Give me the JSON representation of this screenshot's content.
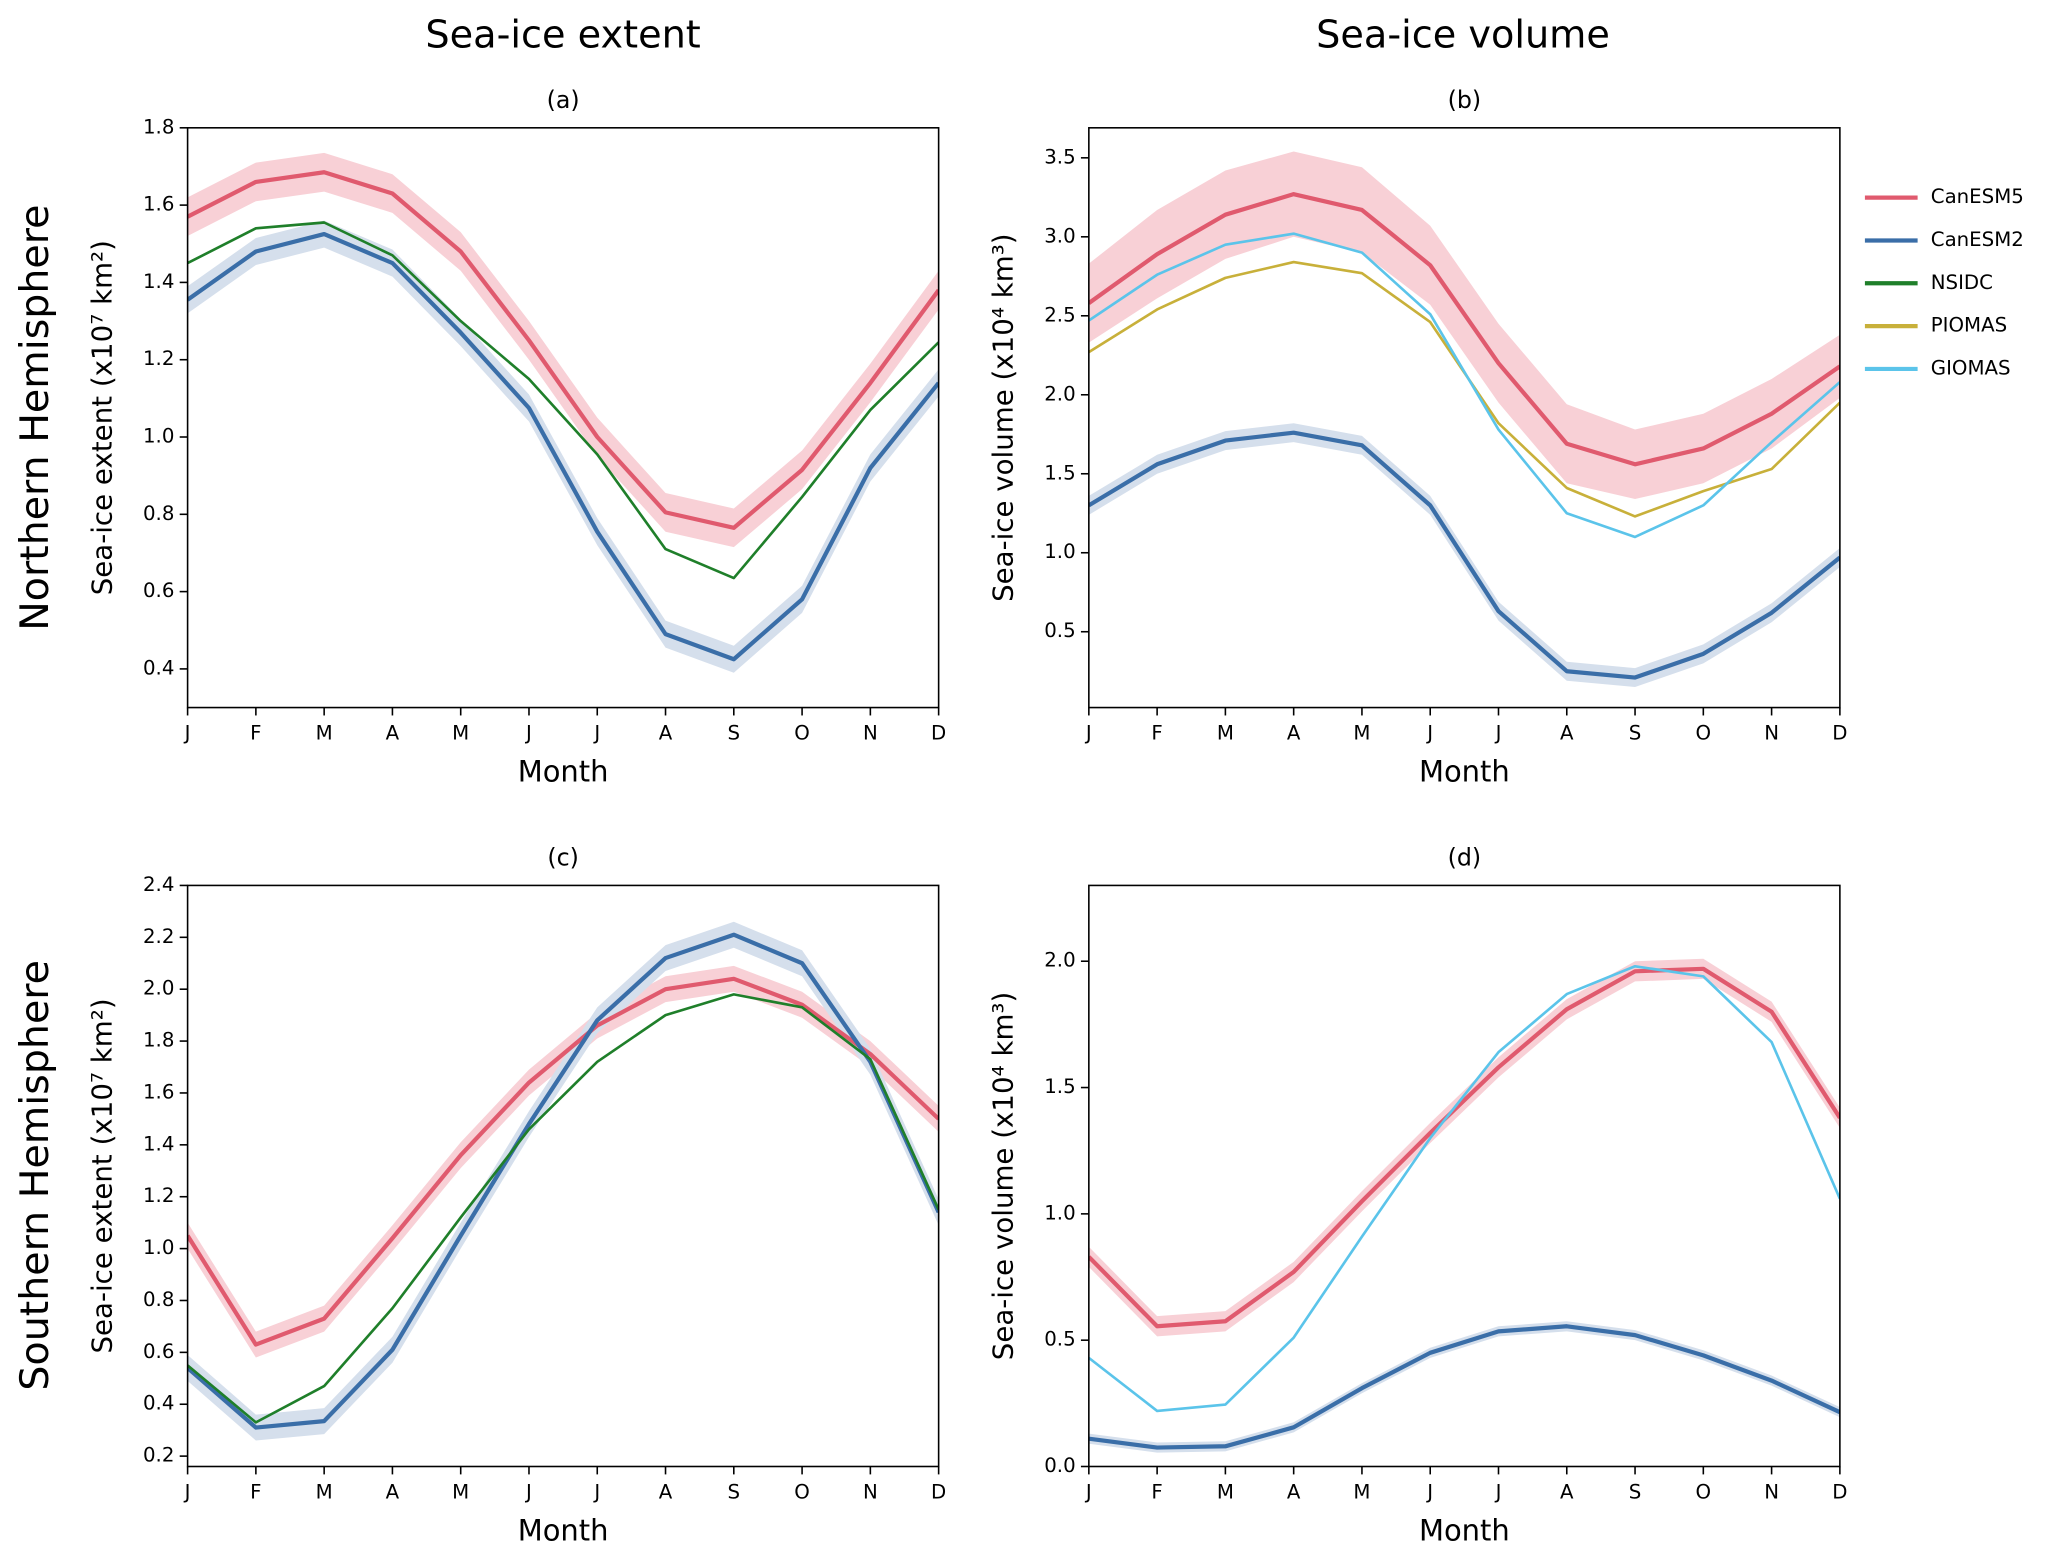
{
  "column_titles": [
    "Sea-ice extent",
    "Sea-ice volume"
  ],
  "row_titles": [
    "Northern Hemisphere",
    "Southern Hemisphere"
  ],
  "legend": [
    {
      "name": "CanESM5",
      "color": "#e05a6e"
    },
    {
      "name": "CanESM2",
      "color": "#3a6ea8"
    },
    {
      "name": "NSIDC",
      "color": "#1f7f2a"
    },
    {
      "name": "PIOMAS",
      "color": "#c8b03a"
    },
    {
      "name": "GIOMAS",
      "color": "#5bc4ea"
    }
  ],
  "chart_data": [
    {
      "type": "line",
      "title": "(a)",
      "xlabel": "Month",
      "ylabel": "Sea-ice extent (x10⁷ km²)",
      "categories": [
        "J",
        "F",
        "M",
        "A",
        "M",
        "J",
        "J",
        "A",
        "S",
        "O",
        "N",
        "D"
      ],
      "ylim": [
        0.3,
        1.8
      ],
      "yticks": [
        0.4,
        0.6,
        0.8,
        {
          "value": 1,
          "label": "1.0"
        },
        1.2,
        1.4,
        1.6,
        1.8
      ],
      "series": [
        {
          "name": "CanESM5",
          "color": "#e05a6e",
          "band_color": "#f8d0d6",
          "values": [
            1.57,
            1.66,
            1.685,
            1.63,
            1.48,
            1.25,
            1.0,
            0.805,
            0.765,
            0.915,
            1.14,
            1.38
          ],
          "error": [
            0.05,
            0.05,
            0.05,
            0.05,
            0.05,
            0.05,
            0.05,
            0.05,
            0.05,
            0.05,
            0.05,
            0.05
          ]
        },
        {
          "name": "CanESM2",
          "color": "#3a6ea8",
          "band_color": "#d5dfec",
          "values": [
            1.355,
            1.48,
            1.525,
            1.45,
            1.27,
            1.075,
            0.755,
            0.49,
            0.425,
            0.58,
            0.92,
            1.14
          ],
          "error": [
            0.035,
            0.035,
            0.035,
            0.035,
            0.035,
            0.035,
            0.035,
            0.035,
            0.035,
            0.035,
            0.035,
            0.035
          ]
        },
        {
          "name": "NSIDC",
          "color": "#1f7f2a",
          "values": [
            1.45,
            1.54,
            1.555,
            1.47,
            1.3,
            1.15,
            0.955,
            0.71,
            0.635,
            0.845,
            1.07,
            1.245
          ]
        }
      ]
    },
    {
      "type": "line",
      "title": "(b)",
      "xlabel": "Month",
      "ylabel": "Sea-ice volume (x10⁴ km³)",
      "categories": [
        "J",
        "F",
        "M",
        "A",
        "M",
        "J",
        "J",
        "A",
        "S",
        "O",
        "N",
        "D"
      ],
      "ylim": [
        0.02,
        3.69
      ],
      "yticks": [
        0.5,
        {
          "value": 1,
          "label": "1.0"
        },
        1.5,
        {
          "value": 2,
          "label": "2.0"
        },
        2.5,
        {
          "value": 3,
          "label": "3.0"
        },
        3.5
      ],
      "series": [
        {
          "name": "CanESM5",
          "color": "#e05a6e",
          "band_color": "#f8d0d6",
          "values": [
            2.58,
            2.89,
            3.14,
            3.27,
            3.17,
            2.82,
            2.2,
            1.69,
            1.56,
            1.66,
            1.88,
            2.18
          ],
          "error": [
            0.25,
            0.28,
            0.28,
            0.27,
            0.27,
            0.25,
            0.25,
            0.25,
            0.22,
            0.22,
            0.22,
            0.2
          ]
        },
        {
          "name": "CanESM2",
          "color": "#3a6ea8",
          "band_color": "#d5dfec",
          "values": [
            1.3,
            1.56,
            1.71,
            1.76,
            1.68,
            1.3,
            0.63,
            0.25,
            0.21,
            0.36,
            0.62,
            0.97
          ],
          "error": [
            0.06,
            0.06,
            0.06,
            0.06,
            0.06,
            0.06,
            0.06,
            0.06,
            0.06,
            0.06,
            0.06,
            0.06
          ]
        },
        {
          "name": "PIOMAS",
          "color": "#c8b03a",
          "values": [
            2.27,
            2.54,
            2.74,
            2.84,
            2.77,
            2.46,
            1.82,
            1.41,
            1.23,
            1.39,
            1.53,
            1.95
          ]
        },
        {
          "name": "GIOMAS",
          "color": "#5bc4ea",
          "values": [
            2.47,
            2.76,
            2.95,
            3.02,
            2.9,
            2.51,
            1.78,
            1.25,
            1.1,
            1.3,
            1.7,
            2.08
          ]
        }
      ]
    },
    {
      "type": "line",
      "title": "(c)",
      "xlabel": "Month",
      "ylabel": "Sea-ice extent (x10⁷ km²)",
      "categories": [
        "J",
        "F",
        "M",
        "A",
        "M",
        "J",
        "J",
        "A",
        "S",
        "O",
        "N",
        "D"
      ],
      "ylim": [
        0.16,
        2.4
      ],
      "yticks": [
        0.2,
        0.4,
        0.6,
        0.8,
        {
          "value": 1,
          "label": "1.0"
        },
        1.2,
        1.4,
        1.6,
        1.8,
        {
          "value": 2,
          "label": "2.0"
        },
        2.2,
        2.4
      ],
      "series": [
        {
          "name": "CanESM5",
          "color": "#e05a6e",
          "band_color": "#f8d0d6",
          "values": [
            1.05,
            0.63,
            0.73,
            1.04,
            1.36,
            1.64,
            1.86,
            2.0,
            2.04,
            1.94,
            1.75,
            1.5
          ],
          "error": [
            0.05,
            0.05,
            0.05,
            0.05,
            0.05,
            0.05,
            0.05,
            0.05,
            0.05,
            0.05,
            0.05,
            0.05
          ]
        },
        {
          "name": "CanESM2",
          "color": "#3a6ea8",
          "band_color": "#d5dfec",
          "values": [
            0.54,
            0.31,
            0.335,
            0.61,
            1.05,
            1.48,
            1.88,
            2.12,
            2.21,
            2.1,
            1.72,
            1.14
          ],
          "error": [
            0.05,
            0.05,
            0.05,
            0.05,
            0.05,
            0.05,
            0.05,
            0.05,
            0.05,
            0.05,
            0.05,
            0.05
          ]
        },
        {
          "name": "NSIDC",
          "color": "#1f7f2a",
          "values": [
            0.55,
            0.33,
            0.47,
            0.77,
            1.12,
            1.46,
            1.72,
            1.9,
            1.98,
            1.93,
            1.73,
            1.15
          ]
        }
      ]
    },
    {
      "type": "line",
      "title": "(d)",
      "xlabel": "Month",
      "ylabel": "Sea-ice volume (x10⁴ km³)",
      "categories": [
        "J",
        "F",
        "M",
        "A",
        "M",
        "J",
        "J",
        "A",
        "S",
        "O",
        "N",
        "D"
      ],
      "ylim": [
        0,
        2.3
      ],
      "yticks": [
        {
          "value": 0,
          "label": "0.0"
        },
        0.5,
        {
          "value": 1,
          "label": "1.0"
        },
        1.5,
        {
          "value": 2,
          "label": "2.0"
        }
      ],
      "series": [
        {
          "name": "CanESM5",
          "color": "#e05a6e",
          "band_color": "#f8d0d6",
          "values": [
            0.83,
            0.555,
            0.575,
            0.77,
            1.05,
            1.32,
            1.58,
            1.81,
            1.96,
            1.97,
            1.8,
            1.38
          ],
          "error": [
            0.04,
            0.04,
            0.04,
            0.04,
            0.04,
            0.04,
            0.04,
            0.04,
            0.04,
            0.04,
            0.04,
            0.04
          ]
        },
        {
          "name": "CanESM2",
          "color": "#3a6ea8",
          "band_color": "#d5dfec",
          "values": [
            0.11,
            0.075,
            0.08,
            0.155,
            0.31,
            0.45,
            0.535,
            0.555,
            0.52,
            0.44,
            0.34,
            0.215
          ],
          "error": [
            0.02,
            0.02,
            0.02,
            0.02,
            0.02,
            0.02,
            0.02,
            0.02,
            0.02,
            0.02,
            0.02,
            0.02
          ]
        },
        {
          "name": "GIOMAS",
          "color": "#5bc4ea",
          "values": [
            0.43,
            0.22,
            0.245,
            0.51,
            0.91,
            1.3,
            1.64,
            1.87,
            1.98,
            1.94,
            1.68,
            1.06
          ]
        }
      ]
    }
  ]
}
